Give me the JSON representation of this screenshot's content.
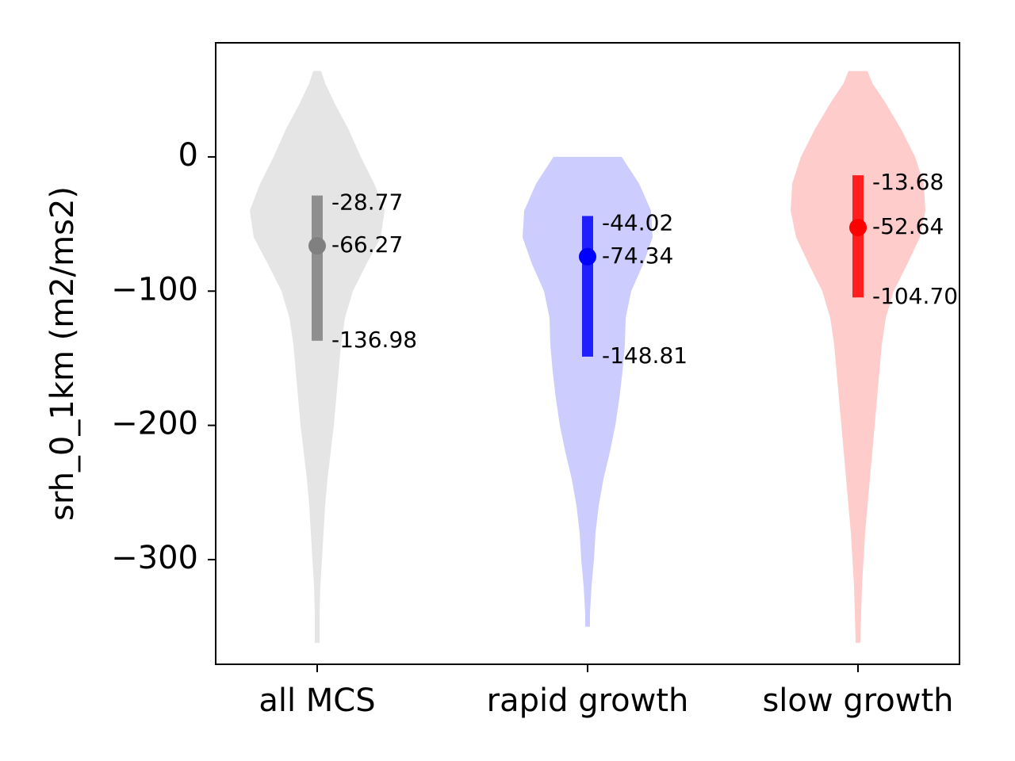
{
  "chart_data": {
    "type": "violin",
    "ylabel": "srh_0_1km (m2/ms2)",
    "ylim": [
      -378,
      85
    ],
    "yticks": [
      0,
      -100,
      -200,
      -300
    ],
    "ytick_labels": [
      "0",
      "−100",
      "−200",
      "−300"
    ],
    "grid": false,
    "categories": [
      "all MCS",
      "rapid growth",
      "slow growth"
    ],
    "series": [
      {
        "category": "all MCS",
        "color": "#808080",
        "fill_color": "#e5e5e5",
        "median": -66.27,
        "q_upper": -28.77,
        "q_lower": -136.98,
        "median_label": "-66.27",
        "upper_label": "-28.77",
        "lower_label": "-136.98",
        "profile": [
          [
            64,
            0.05
          ],
          [
            55,
            0.1
          ],
          [
            40,
            0.22
          ],
          [
            20,
            0.4
          ],
          [
            0,
            0.55
          ],
          [
            -20,
            0.72
          ],
          [
            -40,
            0.85
          ],
          [
            -60,
            0.8
          ],
          [
            -80,
            0.62
          ],
          [
            -100,
            0.45
          ],
          [
            -120,
            0.35
          ],
          [
            -140,
            0.3
          ],
          [
            -160,
            0.27
          ],
          [
            -180,
            0.24
          ],
          [
            -200,
            0.21
          ],
          [
            -220,
            0.17
          ],
          [
            -240,
            0.13
          ],
          [
            -260,
            0.1
          ],
          [
            -280,
            0.08
          ],
          [
            -300,
            0.06
          ],
          [
            -320,
            0.04
          ],
          [
            -340,
            0.03
          ],
          [
            -362,
            0.03
          ]
        ]
      },
      {
        "category": "rapid growth",
        "color": "#0000ff",
        "fill_color": "#ccccff",
        "median": -74.34,
        "q_upper": -44.02,
        "q_lower": -148.81,
        "median_label": "-74.34",
        "upper_label": "-44.02",
        "lower_label": "-148.81",
        "profile": [
          [
            0,
            0.43
          ],
          [
            -20,
            0.65
          ],
          [
            -40,
            0.8
          ],
          [
            -60,
            0.82
          ],
          [
            -80,
            0.7
          ],
          [
            -100,
            0.55
          ],
          [
            -120,
            0.48
          ],
          [
            -140,
            0.47
          ],
          [
            -160,
            0.44
          ],
          [
            -180,
            0.4
          ],
          [
            -200,
            0.35
          ],
          [
            -220,
            0.28
          ],
          [
            -240,
            0.2
          ],
          [
            -260,
            0.14
          ],
          [
            -280,
            0.1
          ],
          [
            -300,
            0.08
          ],
          [
            -320,
            0.05
          ],
          [
            -340,
            0.03
          ],
          [
            -350,
            0.03
          ]
        ]
      },
      {
        "category": "slow growth",
        "color": "#ff0000",
        "fill_color": "#ffcccc",
        "median": -52.64,
        "q_upper": -13.68,
        "q_lower": -104.7,
        "median_label": "-52.64",
        "upper_label": "-13.68",
        "lower_label": "-104.70",
        "profile": [
          [
            64,
            0.12
          ],
          [
            55,
            0.18
          ],
          [
            40,
            0.35
          ],
          [
            20,
            0.55
          ],
          [
            0,
            0.72
          ],
          [
            -20,
            0.83
          ],
          [
            -40,
            0.85
          ],
          [
            -60,
            0.78
          ],
          [
            -80,
            0.62
          ],
          [
            -100,
            0.45
          ],
          [
            -120,
            0.35
          ],
          [
            -140,
            0.3
          ],
          [
            -160,
            0.27
          ],
          [
            -180,
            0.24
          ],
          [
            -200,
            0.21
          ],
          [
            -220,
            0.18
          ],
          [
            -240,
            0.15
          ],
          [
            -260,
            0.12
          ],
          [
            -280,
            0.09
          ],
          [
            -300,
            0.07
          ],
          [
            -320,
            0.05
          ],
          [
            -340,
            0.04
          ],
          [
            -362,
            0.03
          ]
        ]
      }
    ]
  }
}
